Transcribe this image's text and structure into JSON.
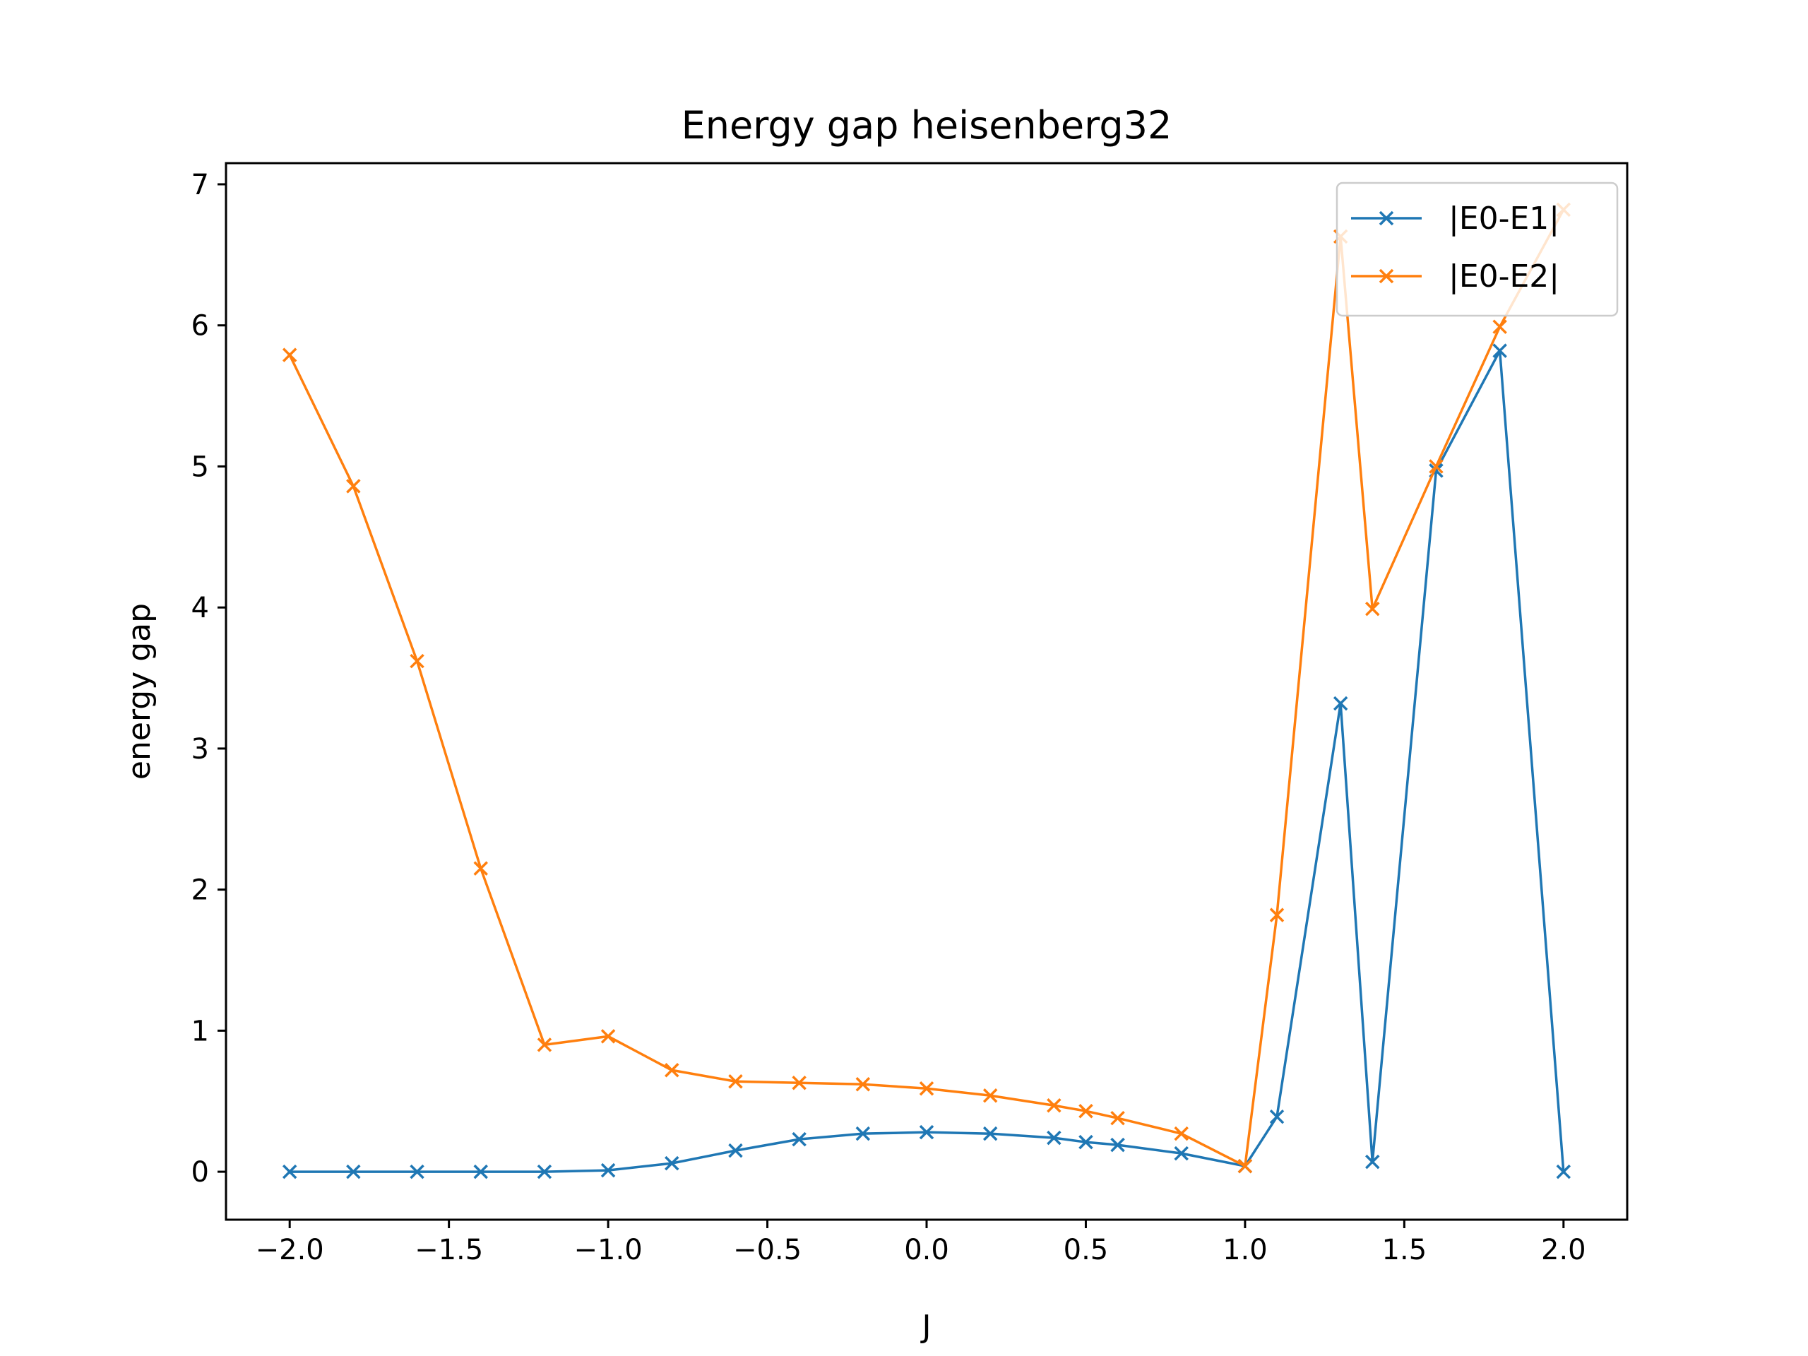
{
  "chart_data": {
    "type": "line",
    "title": "Energy gap heisenberg32",
    "xlabel": "J",
    "ylabel": "energy gap",
    "xlim": [
      -2.2,
      2.2
    ],
    "ylim": [
      -0.34,
      7.15
    ],
    "xticks": [
      -2.0,
      -1.5,
      -1.0,
      -0.5,
      0.0,
      0.5,
      1.0,
      1.5,
      2.0
    ],
    "xtick_labels": [
      "−2.0",
      "−1.5",
      "−1.0",
      "−0.5",
      "0.0",
      "0.5",
      "1.0",
      "1.5",
      "2.0"
    ],
    "yticks": [
      0,
      1,
      2,
      3,
      4,
      5,
      6,
      7
    ],
    "ytick_labels": [
      "0",
      "1",
      "2",
      "3",
      "4",
      "5",
      "6",
      "7"
    ],
    "grid": false,
    "legend_position": "top-right",
    "x": [
      -2.0,
      -1.8,
      -1.6,
      -1.4,
      -1.2,
      -1.0,
      -0.8,
      -0.6,
      -0.4,
      -0.2,
      0.0,
      0.2,
      0.4,
      0.5,
      0.6,
      0.8,
      1.0,
      1.1,
      1.3,
      1.4,
      1.6,
      1.8,
      2.0
    ],
    "series": [
      {
        "name": "|E0-E1|",
        "color": "#1f77b4",
        "marker": "x",
        "values": [
          0.0,
          0.0,
          0.0,
          0.0,
          0.0,
          0.01,
          0.06,
          0.15,
          0.23,
          0.27,
          0.28,
          0.27,
          0.24,
          0.21,
          0.19,
          0.13,
          0.04,
          0.39,
          3.32,
          0.07,
          4.97,
          5.82,
          0.0
        ]
      },
      {
        "name": "|E0-E2|",
        "color": "#ff7f0e",
        "marker": "x",
        "values": [
          5.79,
          4.86,
          3.62,
          2.15,
          0.9,
          0.96,
          0.72,
          0.64,
          0.63,
          0.62,
          0.59,
          0.54,
          0.47,
          0.43,
          0.38,
          0.27,
          0.04,
          1.82,
          6.63,
          3.99,
          5.0,
          5.99,
          6.82
        ]
      }
    ]
  }
}
